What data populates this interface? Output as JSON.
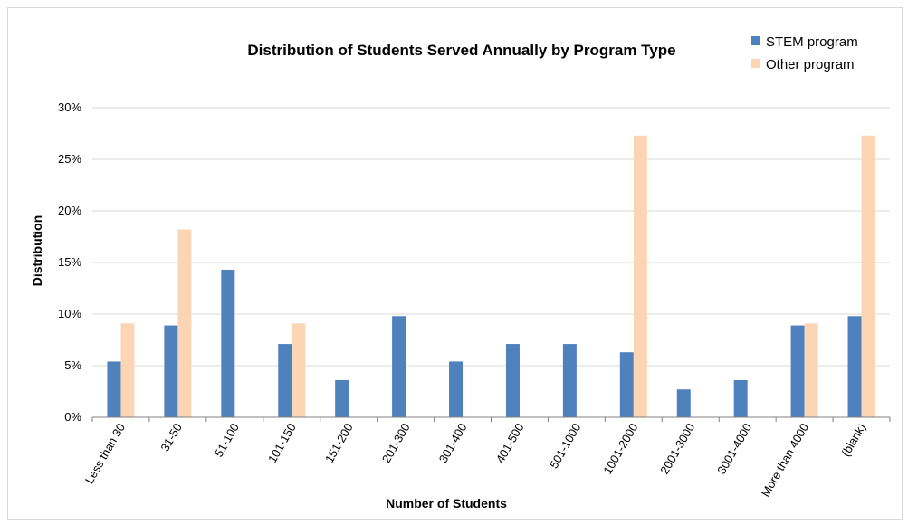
{
  "chart_data": {
    "type": "bar",
    "title": "Distribution of Students Served Annually by Program Type",
    "xlabel": "Number of Students",
    "ylabel": "Distribution",
    "categories": [
      "Less than 30",
      "31-50",
      "51-100",
      "101-150",
      "151-200",
      "201-300",
      "301-400",
      "401-500",
      "501-1000",
      "1001-2000",
      "2001-3000",
      "3001-4000",
      "More than 4000",
      "(blank)"
    ],
    "series": [
      {
        "name": "STEM program",
        "color": "#4f81bd",
        "values": [
          5.4,
          8.9,
          14.3,
          7.1,
          3.6,
          9.8,
          5.4,
          7.1,
          7.1,
          6.3,
          2.7,
          3.6,
          8.9,
          9.8
        ]
      },
      {
        "name": "Other program",
        "color": "#fcd5b4",
        "values": [
          9.1,
          18.2,
          0,
          9.1,
          0,
          0,
          0,
          0,
          0,
          27.3,
          0,
          0,
          9.1,
          27.3
        ]
      }
    ],
    "yticks": [
      "0%",
      "5%",
      "10%",
      "15%",
      "20%",
      "25%",
      "30%"
    ],
    "ylim": [
      0,
      30
    ],
    "grid": true,
    "legend_position": "top-right"
  }
}
